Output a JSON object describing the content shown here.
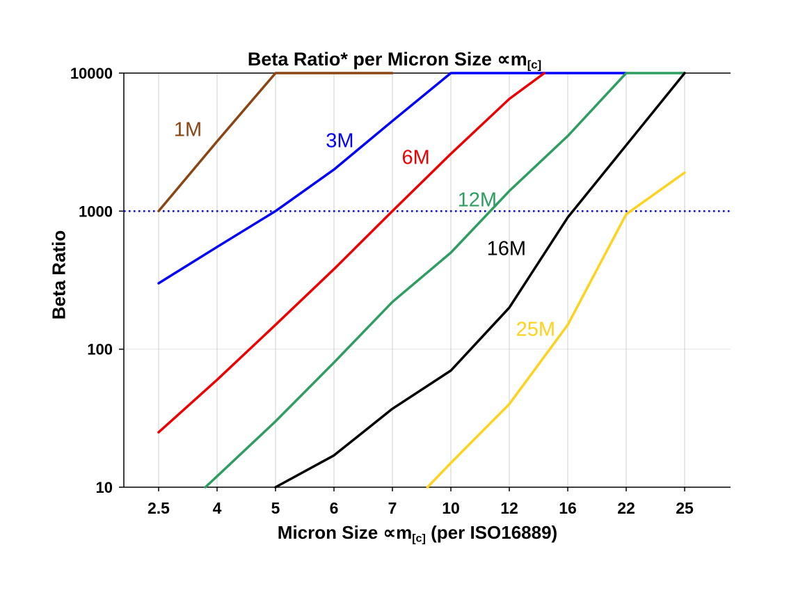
{
  "title": {
    "text": "Beta Ratio* per Micron Size ∝m",
    "sub": "[c]"
  },
  "yaxis": {
    "label": "Beta Ratio"
  },
  "xaxis": {
    "label_pre": "Micron Size ∝m",
    "label_sub": "[c]",
    "label_post": " (per ISO16889)"
  },
  "chart_data": {
    "type": "line",
    "title": "Beta Ratio* per Micron Size ∝m[c]",
    "xlabel": "Micron Size ∝m[c] (per ISO16889)",
    "ylabel": "Beta Ratio",
    "y_scale": "log",
    "ylim": [
      10,
      10000
    ],
    "y_ticks": [
      10,
      100,
      1000,
      10000
    ],
    "grid": "vertical-major",
    "legend_position": "inline-labels",
    "categories": [
      "2.5",
      "4",
      "5",
      "6",
      "7",
      "10",
      "12",
      "16",
      "22",
      "25"
    ],
    "reference_line": {
      "value": 1000,
      "color": "#0000dd",
      "style": "dotted"
    },
    "series": [
      {
        "name": "1M",
        "color": "#8B4513",
        "label_x": 0.5,
        "label_y": 3500,
        "points": [
          [
            0,
            1000
          ],
          [
            1,
            3200
          ],
          [
            2,
            10000
          ],
          [
            4,
            10000
          ]
        ]
      },
      {
        "name": "3M",
        "color": "#0000FF",
        "label_x": 3.1,
        "label_y": 2900,
        "points": [
          [
            0,
            300
          ],
          [
            1,
            550
          ],
          [
            2,
            1000
          ],
          [
            3,
            2000
          ],
          [
            4,
            4500
          ],
          [
            5,
            10000
          ],
          [
            8,
            10000
          ]
        ]
      },
      {
        "name": "6M",
        "color": "#EE0000",
        "label_x": 4.4,
        "label_y": 2200,
        "points": [
          [
            0,
            25
          ],
          [
            1,
            60
          ],
          [
            2,
            150
          ],
          [
            3,
            380
          ],
          [
            4,
            1000
          ],
          [
            5,
            2600
          ],
          [
            6,
            6500
          ],
          [
            6.6,
            10000
          ]
        ]
      },
      {
        "name": "12M",
        "color": "#2E9E60",
        "label_x": 5.45,
        "label_y": 1080,
        "points": [
          [
            0.8,
            10
          ],
          [
            1,
            12
          ],
          [
            2,
            30
          ],
          [
            3,
            80
          ],
          [
            4,
            220
          ],
          [
            5,
            500
          ],
          [
            6,
            1400
          ],
          [
            7,
            3500
          ],
          [
            8,
            10000
          ],
          [
            9,
            10000
          ]
        ]
      },
      {
        "name": "16M",
        "color": "#000000",
        "label_x": 5.95,
        "label_y": 480,
        "points": [
          [
            2,
            10
          ],
          [
            3,
            17
          ],
          [
            4,
            37
          ],
          [
            5,
            70
          ],
          [
            6,
            200
          ],
          [
            7,
            900
          ],
          [
            8,
            3000
          ],
          [
            9,
            10000
          ]
        ]
      },
      {
        "name": "25M",
        "color": "#FFD21E",
        "label_x": 6.45,
        "label_y": 125,
        "points": [
          [
            4.6,
            10
          ],
          [
            5,
            15
          ],
          [
            6,
            40
          ],
          [
            7,
            150
          ],
          [
            8,
            950
          ],
          [
            9,
            1900
          ]
        ]
      }
    ]
  }
}
